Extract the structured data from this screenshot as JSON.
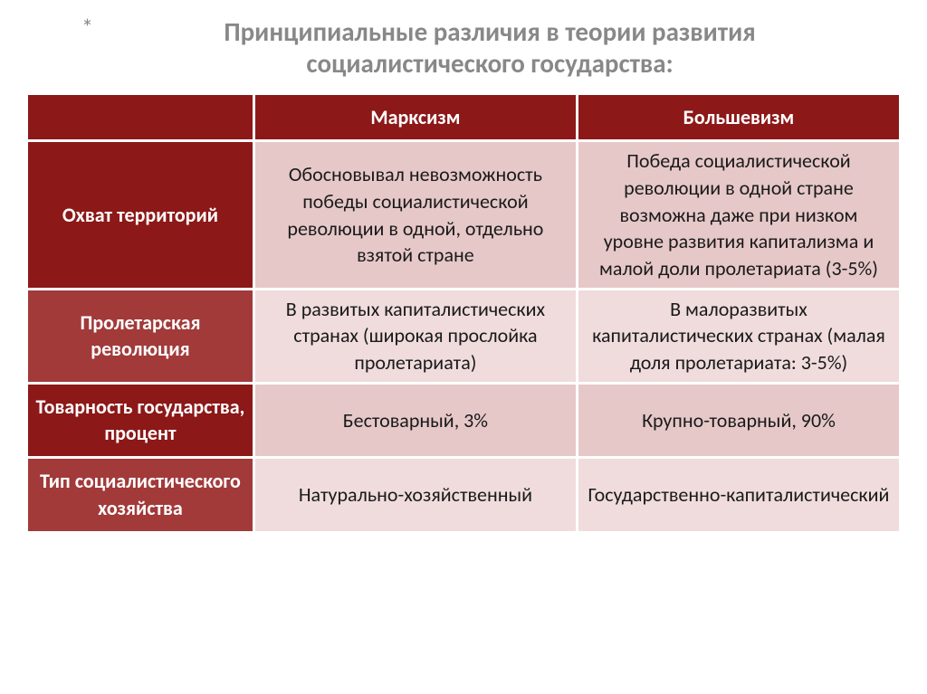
{
  "title_line1": "Принципиальные различия в теории развития",
  "title_line2": "социалистического государства:",
  "asterisk": "*",
  "colors": {
    "header_dark": "#8c1818",
    "header_mid": "#a23a3a",
    "cell_dark_pink": "#e6c8c8",
    "cell_light_pink": "#f0dcdc",
    "title_color": "#888888",
    "text_color": "#1a1a1a",
    "border": "#ffffff"
  },
  "columns": [
    "",
    "Марксизм",
    "Большевизм"
  ],
  "rows": [
    {
      "label": "Охват территорий",
      "label_bg": "dark",
      "cell_bg": "pink1",
      "marx": "Обосновывал невозможность победы социалистической революции в одной, отдельно взятой стране",
      "bol": "Победа социалистической революции в одной стране возможна даже при низком уровне развития капитализма и малой доли пролетариата (3-5%)"
    },
    {
      "label": "Пролетарская революция",
      "label_bg": "mid",
      "cell_bg": "pink2",
      "marx": "В развитых капиталистических странах (широкая прослойка пролетариата)",
      "bol": "В малоразвитых капиталистических странах (малая доля пролетариата: 3-5%)"
    },
    {
      "label": "Товарность государства, процент",
      "label_bg": "dark",
      "cell_bg": "pink1",
      "marx": "Бестоварный, 3%",
      "bol": "Крупно-товарный, 90%"
    },
    {
      "label": "Тип социалистического хозяйства",
      "label_bg": "mid",
      "cell_bg": "pink2",
      "marx": "Натурально-хозяйственный",
      "bol": "Государственно-капиталистический"
    }
  ]
}
